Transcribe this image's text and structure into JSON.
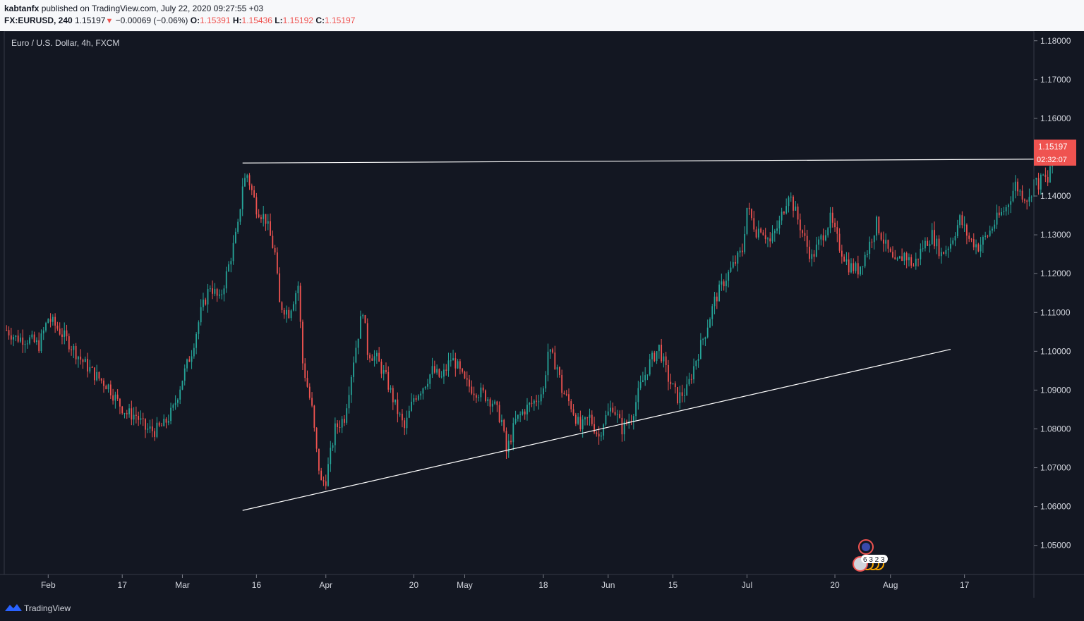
{
  "header": {
    "author": "kabtanfx",
    "published_text": "published on TradingView.com, July 22, 2020 09:27:55 +03",
    "symbol": "FX:EURUSD, 240",
    "last": "1.15197",
    "arrow": "▼",
    "change": "−0.00069 (−0.06%)",
    "o_label": "O:",
    "o_value": "1.15391",
    "h_label": "H:",
    "h_value": "1.15436",
    "l_label": "L:",
    "l_value": "1.15192",
    "c_label": "C:",
    "c_value": "1.15197"
  },
  "colors": {
    "background": "#131722",
    "up": "#26a69a",
    "down": "#ef5350",
    "line": "#ffffff",
    "axis_text": "#d1d4dc"
  },
  "footer": {
    "brand": "TradingView",
    "logo_icon": "tradingview-logo-icon"
  },
  "event_markers": {
    "flag_icon": "eu-flag-icon",
    "us_flag_icon": "us-flag-icon",
    "counts": "6 3 2 3"
  },
  "chart_data": {
    "type": "candlestick",
    "title": "Euro / U.S. Dollar, 4h, FXCM",
    "xlabel": "",
    "ylabel": "",
    "ylim": [
      1.0425,
      1.1825
    ],
    "y_ticks": [
      "1.18000",
      "1.17000",
      "1.16000",
      "1.15000",
      "1.14000",
      "1.13000",
      "1.12000",
      "1.11000",
      "1.10000",
      "1.09000",
      "1.08000",
      "1.07000",
      "1.06000",
      "1.05000"
    ],
    "y_tick_values": [
      1.18,
      1.17,
      1.16,
      1.15,
      1.14,
      1.13,
      1.12,
      1.11,
      1.1,
      1.09,
      1.08,
      1.07,
      1.06,
      1.05
    ],
    "x_ticks": [
      {
        "label": "Feb",
        "day": 1
      },
      {
        "label": "17",
        "day": 17
      },
      {
        "label": "Mar",
        "day": 30
      },
      {
        "label": "16",
        "day": 46
      },
      {
        "label": "Apr",
        "day": 61
      },
      {
        "label": "20",
        "day": 80
      },
      {
        "label": "May",
        "day": 91
      },
      {
        "label": "18",
        "day": 108
      },
      {
        "label": "Jun",
        "day": 122
      },
      {
        "label": "15",
        "day": 136
      },
      {
        "label": "Jul",
        "day": 152
      },
      {
        "label": "20",
        "day": 171
      },
      {
        "label": "Aug",
        "day": 183
      },
      {
        "label": "17",
        "day": 199
      }
    ],
    "x_day_range": [
      -8.5,
      214
    ],
    "price_anchors": [
      [
        -8,
        1.1055
      ],
      [
        -6,
        1.1035
      ],
      [
        -3,
        1.103
      ],
      [
        -1,
        1.1015
      ],
      [
        1,
        1.1085
      ],
      [
        3,
        1.106
      ],
      [
        5,
        1.103
      ],
      [
        8,
        1.098
      ],
      [
        11,
        1.094
      ],
      [
        14,
        1.091
      ],
      [
        16,
        1.087
      ],
      [
        18,
        1.084
      ],
      [
        20,
        1.0835
      ],
      [
        22,
        1.08
      ],
      [
        24,
        1.0795
      ],
      [
        26,
        1.081
      ],
      [
        28,
        1.085
      ],
      [
        30,
        1.093
      ],
      [
        32,
        1.1
      ],
      [
        34,
        1.11
      ],
      [
        36,
        1.117
      ],
      [
        38,
        1.113
      ],
      [
        40,
        1.122
      ],
      [
        42,
        1.132
      ],
      [
        43,
        1.143
      ],
      [
        44,
        1.1455
      ],
      [
        46,
        1.137
      ],
      [
        48,
        1.134
      ],
      [
        50,
        1.125
      ],
      [
        51,
        1.112
      ],
      [
        53,
        1.11
      ],
      [
        55,
        1.117
      ],
      [
        56,
        1.097
      ],
      [
        58,
        1.085
      ],
      [
        59,
        1.074
      ],
      [
        60,
        1.066
      ],
      [
        61,
        1.067
      ],
      [
        63,
        1.08
      ],
      [
        65,
        1.083
      ],
      [
        67,
        1.098
      ],
      [
        69,
        1.111
      ],
      [
        70,
        1.1
      ],
      [
        72,
        1.098
      ],
      [
        74,
        1.093
      ],
      [
        76,
        1.086
      ],
      [
        78,
        1.08
      ],
      [
        80,
        1.088
      ],
      [
        82,
        1.091
      ],
      [
        84,
        1.095
      ],
      [
        86,
        1.093
      ],
      [
        88,
        1.098
      ],
      [
        89,
        1.097
      ],
      [
        91,
        1.092
      ],
      [
        93,
        1.09
      ],
      [
        95,
        1.089
      ],
      [
        97,
        1.087
      ],
      [
        99,
        1.082
      ],
      [
        100,
        1.074
      ],
      [
        102,
        1.082
      ],
      [
        104,
        1.085
      ],
      [
        106,
        1.087
      ],
      [
        108,
        1.09
      ],
      [
        109,
        1.1
      ],
      [
        111,
        1.096
      ],
      [
        112,
        1.09
      ],
      [
        114,
        1.086
      ],
      [
        116,
        1.08
      ],
      [
        118,
        1.083
      ],
      [
        120,
        1.078
      ],
      [
        121,
        1.082
      ],
      [
        123,
        1.086
      ],
      [
        125,
        1.08
      ],
      [
        127,
        1.083
      ],
      [
        129,
        1.091
      ],
      [
        131,
        1.097
      ],
      [
        133,
        1.101
      ],
      [
        135,
        1.093
      ],
      [
        137,
        1.088
      ],
      [
        139,
        1.09
      ],
      [
        141,
        1.098
      ],
      [
        143,
        1.105
      ],
      [
        145,
        1.113
      ],
      [
        147,
        1.118
      ],
      [
        149,
        1.122
      ],
      [
        151,
        1.126
      ],
      [
        152,
        1.137
      ],
      [
        154,
        1.131
      ],
      [
        155,
        1.132
      ],
      [
        157,
        1.128
      ],
      [
        159,
        1.133
      ],
      [
        160,
        1.137
      ],
      [
        161,
        1.141
      ],
      [
        163,
        1.134
      ],
      [
        165,
        1.127
      ],
      [
        166,
        1.124
      ],
      [
        168,
        1.129
      ],
      [
        170,
        1.134
      ],
      [
        172,
        1.127
      ],
      [
        174,
        1.122
      ],
      [
        176,
        1.121
      ],
      [
        178,
        1.126
      ],
      [
        180,
        1.133
      ],
      [
        182,
        1.127
      ],
      [
        184,
        1.122
      ],
      [
        186,
        1.125
      ],
      [
        188,
        1.122
      ],
      [
        190,
        1.127
      ],
      [
        192,
        1.13
      ],
      [
        194,
        1.125
      ],
      [
        196,
        1.128
      ],
      [
        198,
        1.134
      ],
      [
        200,
        1.129
      ],
      [
        202,
        1.127
      ],
      [
        204,
        1.13
      ],
      [
        206,
        1.134
      ],
      [
        208,
        1.137
      ],
      [
        210,
        1.143
      ],
      [
        211,
        1.141
      ],
      [
        213,
        1.139
      ],
      [
        214,
        1.144
      ],
      [
        215,
        1.143
      ],
      [
        216,
        1.145
      ],
      [
        217,
        1.1435
      ],
      [
        218,
        1.152
      ],
      [
        219,
        1.1525
      ],
      [
        219.5,
        1.15197
      ]
    ],
    "trendlines": [
      {
        "name": "resistance-line",
        "x": [
          43,
          215
        ],
        "y": [
          1.1485,
          1.1495
        ]
      },
      {
        "name": "support-line",
        "x": [
          43,
          196
        ],
        "y": [
          1.059,
          1.1005
        ]
      }
    ],
    "last_price_label": "1.15197",
    "countdown_label": "02:32:07"
  }
}
